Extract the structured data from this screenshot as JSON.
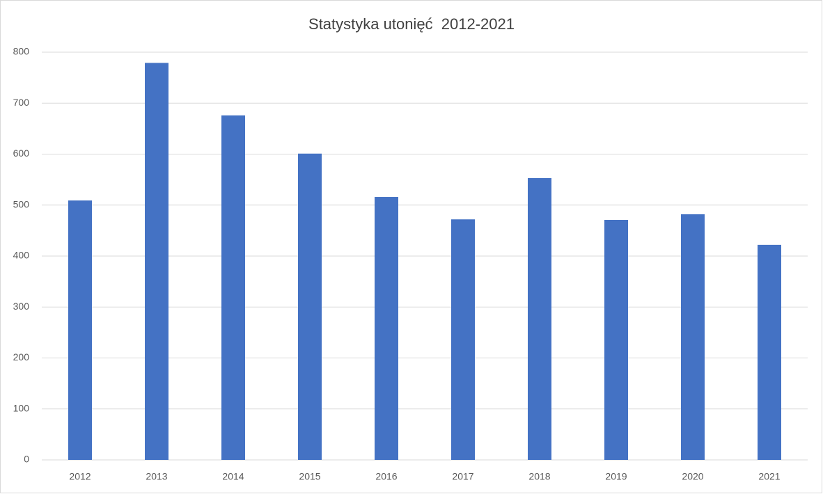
{
  "chart_data": {
    "type": "bar",
    "title": "Statystyka utonięć  2012-2021",
    "categories": [
      "2012",
      "2013",
      "2014",
      "2015",
      "2016",
      "2017",
      "2018",
      "2019",
      "2020",
      "2021"
    ],
    "values": [
      509,
      779,
      676,
      601,
      516,
      472,
      553,
      471,
      482,
      422
    ],
    "color": "#4472c4",
    "ylim": [
      0,
      800
    ],
    "yticks": [
      0,
      100,
      200,
      300,
      400,
      500,
      600,
      700,
      800
    ],
    "grid": true
  }
}
